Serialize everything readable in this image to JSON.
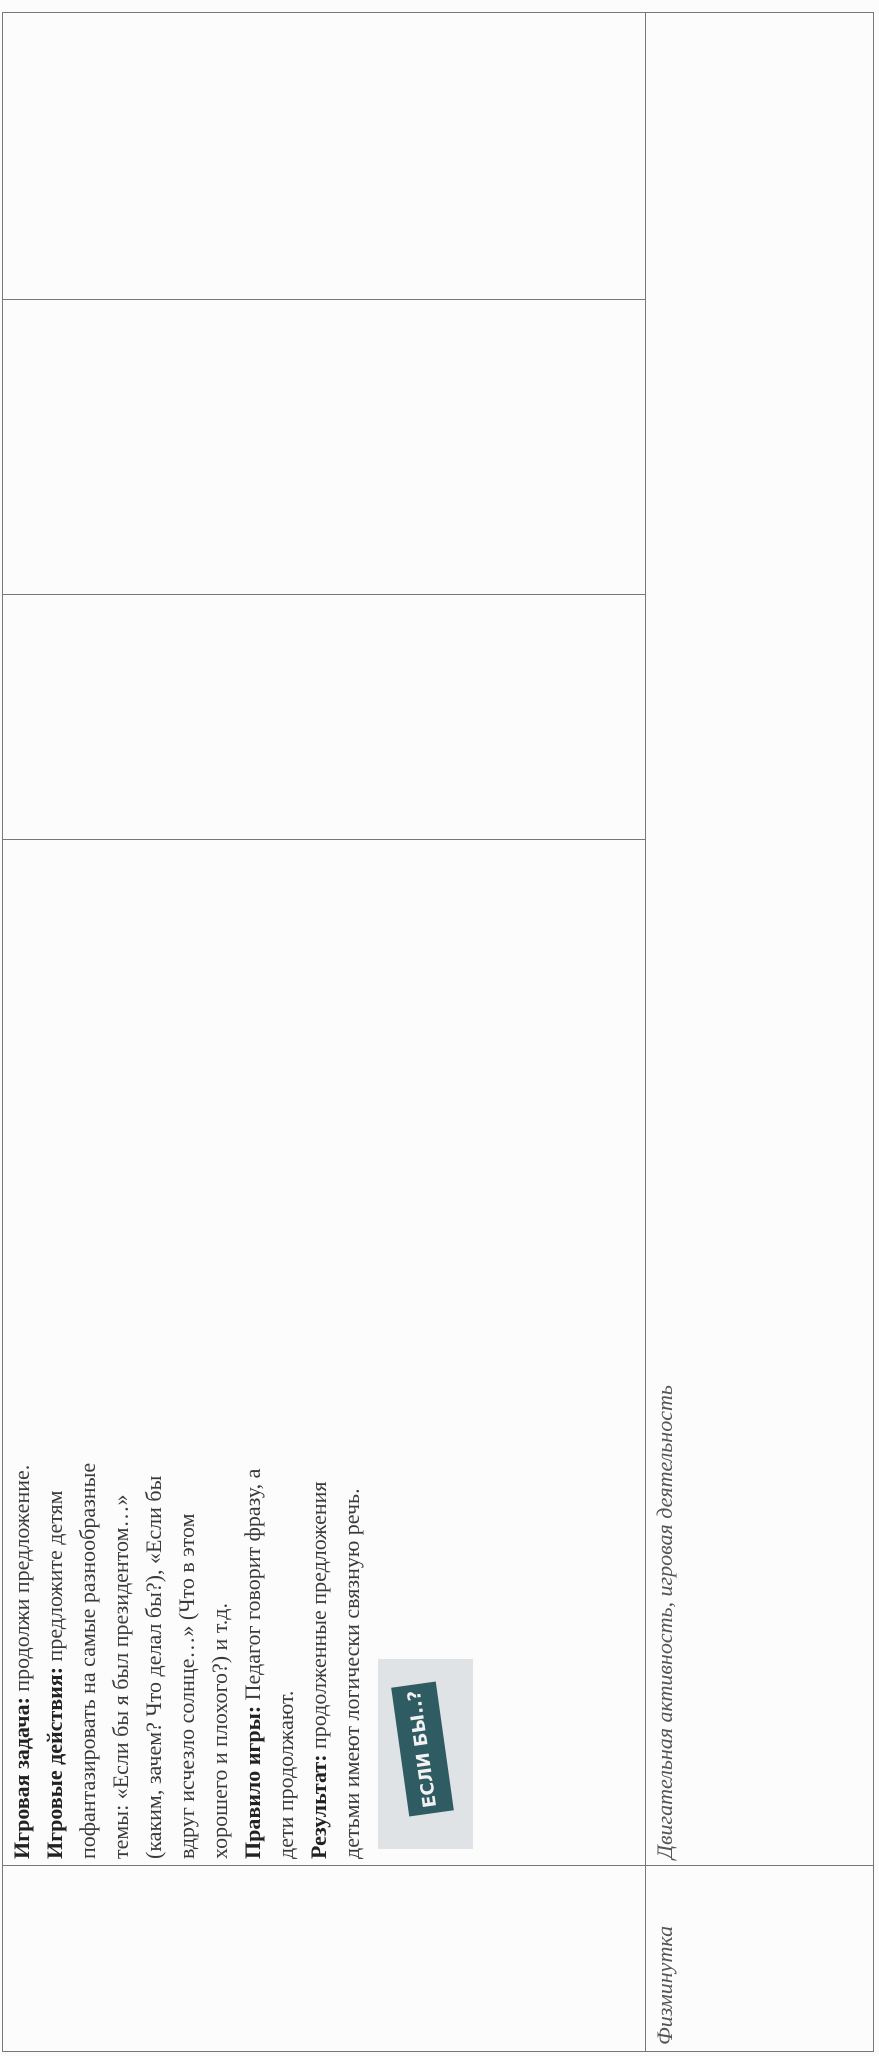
{
  "table": {
    "rows": [
      {
        "cells": [
          {
            "text": ""
          },
          {
            "paragraphs": [
              {
                "label": "Игровая задача:",
                "text": "продолжи предложение."
              },
              {
                "label": "Игровые действия:",
                "text": "предложите детям пофантазировать на самые разнообразные темы: «Если бы я был президентом…» (каким, зачем? Что делал бы?), «Если бы вдруг исчезло солнце…» (Что в этом хорошего и плохого?) и т.д."
              },
              {
                "label": "Правило игры:",
                "text": "Педагог говорит фразу, а дети продолжают."
              },
              {
                "label": "Результат:",
                "text": "продолженные предложения детьми имеют логически связную речь."
              }
            ],
            "image_text": "ЕСЛИ БЫ..?"
          },
          {
            "text": ""
          },
          {
            "text": ""
          },
          {
            "text": ""
          }
        ]
      },
      {
        "cells": [
          {
            "text": "Физминутка"
          },
          {
            "text": "Двигательная активность, игровая деятельность"
          }
        ]
      }
    ]
  }
}
